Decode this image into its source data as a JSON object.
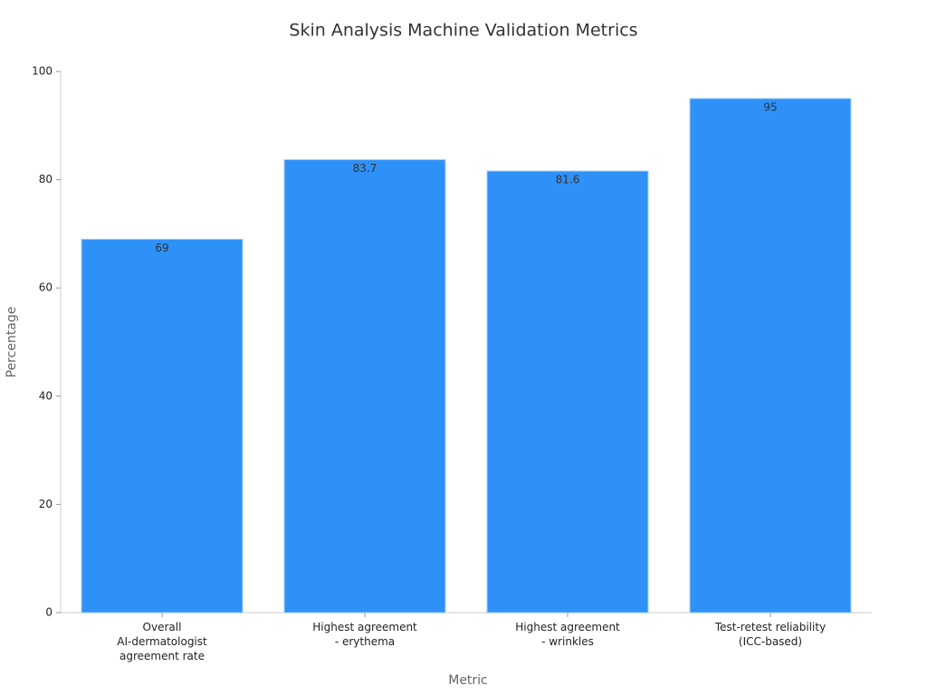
{
  "chart_data": {
    "type": "bar",
    "title": "Skin Analysis Machine Validation Metrics",
    "x_label": "Metric",
    "y_label": "Percentage",
    "categories": [
      "Overall\nAI-dermatologist\nagreement rate",
      "Highest agreement\n- erythema",
      "Highest agreement\n- wrinkles",
      "Test-retest reliability\n(ICC-based)"
    ],
    "values": [
      69,
      83.7,
      81.6,
      95
    ],
    "color": "#2e91f8",
    "ylim": [
      0,
      100
    ],
    "yticks": [
      0,
      20,
      40,
      60,
      80,
      100
    ],
    "grid": false
  }
}
